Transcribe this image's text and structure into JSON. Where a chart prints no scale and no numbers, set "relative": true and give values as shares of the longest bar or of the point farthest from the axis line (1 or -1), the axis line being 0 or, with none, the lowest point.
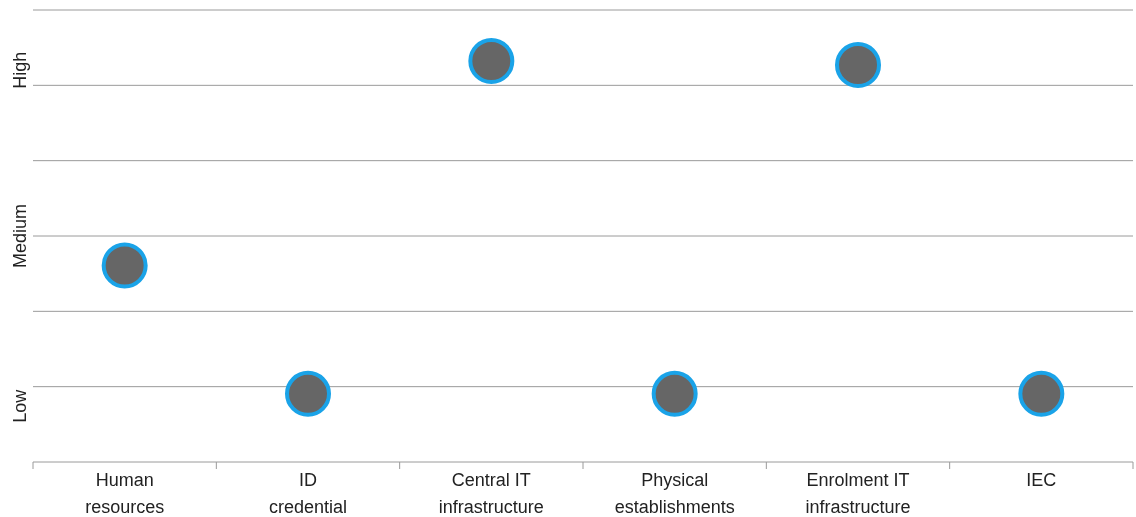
{
  "chart_data": {
    "type": "scatter",
    "relative": true,
    "categories": [
      "Human resources",
      "ID credential",
      "Central IT infrastructure",
      "Physical establishments",
      "Enrolment IT infrastructure",
      "IEC"
    ],
    "series": [
      {
        "color": "#666666",
        "values": [
          0.49,
          0.17,
          1,
          0.17,
          0.99,
          0.17
        ]
      }
    ],
    "annotations": [
      "Low",
      "Medium",
      "High"
    ],
    "grid": true,
    "marker": "circle"
  }
}
